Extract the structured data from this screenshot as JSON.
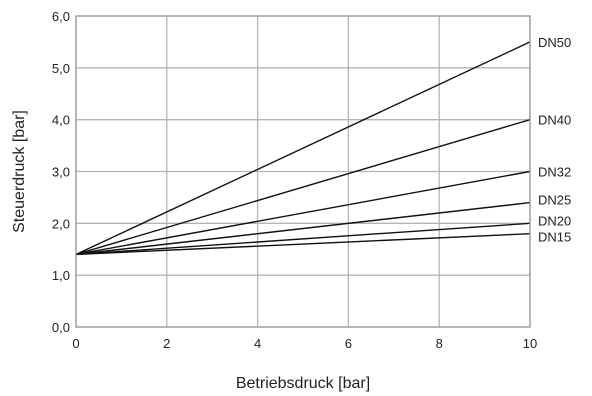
{
  "chart_data": {
    "type": "line",
    "title": "",
    "xlabel": "Betriebsdruck [bar]",
    "ylabel": "Steuerdruck [bar]",
    "xlim": [
      0,
      10
    ],
    "ylim": [
      0,
      6
    ],
    "xticks": [
      0,
      2,
      4,
      6,
      8,
      10
    ],
    "xtick_labels": [
      "0",
      "2",
      "4",
      "6",
      "8",
      "10"
    ],
    "yticks": [
      0,
      1,
      2,
      3,
      4,
      5,
      6
    ],
    "ytick_labels": [
      "0,0",
      "1,0",
      "2,0",
      "3,0",
      "4,0",
      "5,0",
      "6,0"
    ],
    "grid": true,
    "legend": "labels at right end of lines",
    "series": [
      {
        "name": "DN50",
        "x": [
          0,
          10
        ],
        "y": [
          1.4,
          5.5
        ]
      },
      {
        "name": "DN40",
        "x": [
          0,
          10
        ],
        "y": [
          1.4,
          4.0
        ]
      },
      {
        "name": "DN32",
        "x": [
          0,
          10
        ],
        "y": [
          1.4,
          3.0
        ]
      },
      {
        "name": "DN25",
        "x": [
          0,
          10
        ],
        "y": [
          1.4,
          2.4
        ]
      },
      {
        "name": "DN20",
        "x": [
          0,
          10
        ],
        "y": [
          1.4,
          2.0
        ]
      },
      {
        "name": "DN15",
        "x": [
          0,
          10
        ],
        "y": [
          1.4,
          1.8
        ]
      }
    ]
  }
}
